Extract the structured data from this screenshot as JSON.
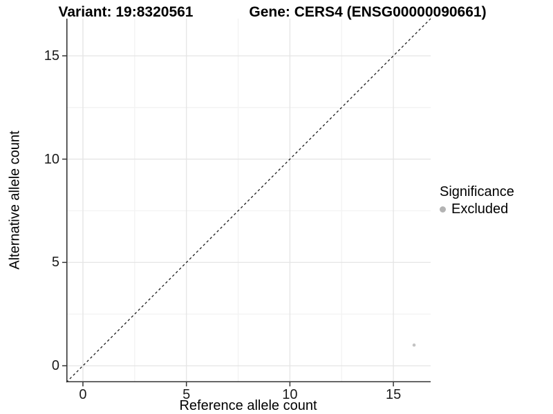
{
  "chart_data": {
    "type": "scatter",
    "title_left": "Variant: 19:8320561",
    "title_right": "Gene: CERS4 (ENSG00000090661)",
    "xlabel": "Reference allele count",
    "ylabel": "Alternative allele count",
    "xlim": [
      -0.8,
      16.8
    ],
    "ylim": [
      -0.8,
      16.8
    ],
    "x_ticks": [
      0,
      5,
      10,
      15
    ],
    "y_ticks": [
      0,
      5,
      10,
      15
    ],
    "x_minor_ticks": [
      2.5,
      7.5,
      12.5
    ],
    "y_minor_ticks": [
      2.5,
      7.5,
      12.5
    ],
    "grid": true,
    "diagonal_line": {
      "style": "dashed",
      "from": [
        -0.8,
        -0.8
      ],
      "to": [
        16.8,
        16.8
      ]
    },
    "series": [
      {
        "name": "Excluded",
        "points": [
          {
            "x": 16,
            "y": 1
          }
        ]
      }
    ],
    "legend": {
      "title": "Significance",
      "position": "right",
      "items": [
        {
          "label": "Excluded",
          "color": "#b3b3b3"
        }
      ]
    },
    "colors": {
      "background": "#ffffff",
      "axis_line": "#333333",
      "grid_major": "#e6e6e6",
      "grid_minor": "#f3f3f3",
      "diagonal": "#1a1a1a",
      "point": "#c3c3c3",
      "text": "#000000"
    }
  }
}
